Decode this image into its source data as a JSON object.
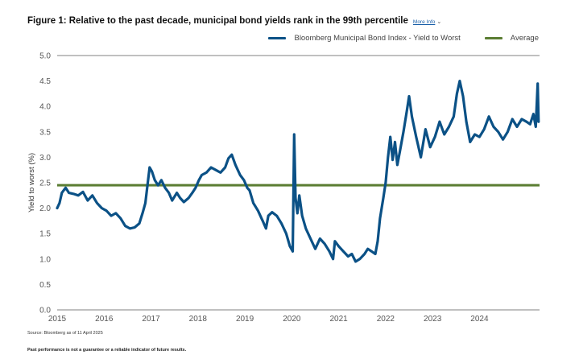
{
  "figure": {
    "title": "Figure 1: Relative to the past decade, municipal bond yields rank in the 99th percentile",
    "more_info_label": "More Info",
    "more_info_icon": "chevron-down-icon",
    "source": "Source: Bloomberg as of 11 April 2025",
    "disclaimer": "Past performance is not a guarantee or a reliable indicator of future results."
  },
  "legend": [
    {
      "label": "Bloomberg Municipal Bond Index - Yield to Worst",
      "color": "#0b5186"
    },
    {
      "label": "Average",
      "color": "#5a7d32"
    }
  ],
  "chart_data": {
    "type": "line",
    "title": "Figure 1: Relative to the past decade, municipal bond yields rank in the 99th percentile",
    "xlabel": "",
    "ylabel": "Yield to worst (%)",
    "xlim": [
      2015.0,
      2025.28
    ],
    "ylim": [
      0,
      5.0
    ],
    "x_ticks": [
      "2015",
      "2016",
      "2017",
      "2018",
      "2019",
      "2020",
      "2021",
      "2022",
      "2023",
      "2024"
    ],
    "y_ticks": [
      "0.0",
      "0.5",
      "1.0",
      "1.5",
      "2.0",
      "2.5",
      "3.0",
      "3.5",
      "4.0",
      "4.5",
      "5.0"
    ],
    "grid": "top and baseline lines only",
    "legend_position": "top-right",
    "series": [
      {
        "name": "Bloomberg Municipal Bond Index - Yield to Worst",
        "color": "#0b5186",
        "points": [
          [
            2015.0,
            2.0
          ],
          [
            2015.05,
            2.1
          ],
          [
            2015.1,
            2.3
          ],
          [
            2015.18,
            2.4
          ],
          [
            2015.25,
            2.3
          ],
          [
            2015.35,
            2.28
          ],
          [
            2015.45,
            2.25
          ],
          [
            2015.55,
            2.32
          ],
          [
            2015.65,
            2.15
          ],
          [
            2015.75,
            2.25
          ],
          [
            2015.85,
            2.1
          ],
          [
            2015.95,
            2.0
          ],
          [
            2016.05,
            1.95
          ],
          [
            2016.15,
            1.85
          ],
          [
            2016.25,
            1.9
          ],
          [
            2016.35,
            1.8
          ],
          [
            2016.45,
            1.65
          ],
          [
            2016.55,
            1.6
          ],
          [
            2016.65,
            1.62
          ],
          [
            2016.75,
            1.7
          ],
          [
            2016.82,
            1.9
          ],
          [
            2016.88,
            2.1
          ],
          [
            2016.93,
            2.5
          ],
          [
            2016.97,
            2.8
          ],
          [
            2017.02,
            2.72
          ],
          [
            2017.08,
            2.55
          ],
          [
            2017.15,
            2.45
          ],
          [
            2017.22,
            2.55
          ],
          [
            2017.3,
            2.4
          ],
          [
            2017.38,
            2.3
          ],
          [
            2017.45,
            2.15
          ],
          [
            2017.55,
            2.3
          ],
          [
            2017.62,
            2.2
          ],
          [
            2017.7,
            2.12
          ],
          [
            2017.8,
            2.2
          ],
          [
            2017.88,
            2.3
          ],
          [
            2017.95,
            2.4
          ],
          [
            2018.02,
            2.55
          ],
          [
            2018.08,
            2.65
          ],
          [
            2018.18,
            2.7
          ],
          [
            2018.28,
            2.8
          ],
          [
            2018.38,
            2.75
          ],
          [
            2018.48,
            2.7
          ],
          [
            2018.58,
            2.8
          ],
          [
            2018.65,
            2.98
          ],
          [
            2018.72,
            3.05
          ],
          [
            2018.8,
            2.85
          ],
          [
            2018.9,
            2.65
          ],
          [
            2018.98,
            2.55
          ],
          [
            2019.05,
            2.4
          ],
          [
            2019.1,
            2.35
          ],
          [
            2019.18,
            2.1
          ],
          [
            2019.28,
            1.95
          ],
          [
            2019.38,
            1.75
          ],
          [
            2019.45,
            1.6
          ],
          [
            2019.5,
            1.85
          ],
          [
            2019.58,
            1.92
          ],
          [
            2019.68,
            1.85
          ],
          [
            2019.78,
            1.7
          ],
          [
            2019.88,
            1.5
          ],
          [
            2019.96,
            1.25
          ],
          [
            2020.02,
            1.15
          ],
          [
            2020.05,
            3.45
          ],
          [
            2020.08,
            2.2
          ],
          [
            2020.12,
            1.9
          ],
          [
            2020.16,
            2.25
          ],
          [
            2020.22,
            1.85
          ],
          [
            2020.3,
            1.6
          ],
          [
            2020.4,
            1.4
          ],
          [
            2020.5,
            1.2
          ],
          [
            2020.6,
            1.4
          ],
          [
            2020.7,
            1.3
          ],
          [
            2020.8,
            1.15
          ],
          [
            2020.88,
            1.0
          ],
          [
            2020.92,
            1.35
          ],
          [
            2021.0,
            1.25
          ],
          [
            2021.1,
            1.15
          ],
          [
            2021.2,
            1.05
          ],
          [
            2021.28,
            1.1
          ],
          [
            2021.36,
            0.95
          ],
          [
            2021.45,
            1.0
          ],
          [
            2021.55,
            1.1
          ],
          [
            2021.62,
            1.2
          ],
          [
            2021.7,
            1.15
          ],
          [
            2021.78,
            1.1
          ],
          [
            2021.83,
            1.35
          ],
          [
            2021.88,
            1.8
          ],
          [
            2021.95,
            2.2
          ],
          [
            2022.0,
            2.5
          ],
          [
            2022.05,
            3.0
          ],
          [
            2022.1,
            3.4
          ],
          [
            2022.15,
            2.95
          ],
          [
            2022.2,
            3.3
          ],
          [
            2022.25,
            2.85
          ],
          [
            2022.3,
            3.1
          ],
          [
            2022.38,
            3.5
          ],
          [
            2022.45,
            3.9
          ],
          [
            2022.5,
            4.2
          ],
          [
            2022.56,
            3.8
          ],
          [
            2022.65,
            3.4
          ],
          [
            2022.75,
            3.0
          ],
          [
            2022.85,
            3.55
          ],
          [
            2022.95,
            3.2
          ],
          [
            2023.05,
            3.4
          ],
          [
            2023.15,
            3.7
          ],
          [
            2023.25,
            3.45
          ],
          [
            2023.35,
            3.6
          ],
          [
            2023.45,
            3.8
          ],
          [
            2023.52,
            4.25
          ],
          [
            2023.58,
            4.5
          ],
          [
            2023.65,
            4.2
          ],
          [
            2023.72,
            3.7
          ],
          [
            2023.8,
            3.3
          ],
          [
            2023.9,
            3.45
          ],
          [
            2024.0,
            3.4
          ],
          [
            2024.1,
            3.55
          ],
          [
            2024.2,
            3.8
          ],
          [
            2024.3,
            3.6
          ],
          [
            2024.4,
            3.5
          ],
          [
            2024.5,
            3.35
          ],
          [
            2024.6,
            3.5
          ],
          [
            2024.7,
            3.75
          ],
          [
            2024.8,
            3.6
          ],
          [
            2024.9,
            3.75
          ],
          [
            2025.0,
            3.7
          ],
          [
            2025.08,
            3.65
          ],
          [
            2025.15,
            3.85
          ],
          [
            2025.2,
            3.6
          ],
          [
            2025.24,
            4.45
          ],
          [
            2025.26,
            3.7
          ]
        ]
      },
      {
        "name": "Average",
        "color": "#5a7d32",
        "points": [
          [
            2015.0,
            2.45
          ],
          [
            2025.28,
            2.45
          ]
        ]
      }
    ]
  }
}
